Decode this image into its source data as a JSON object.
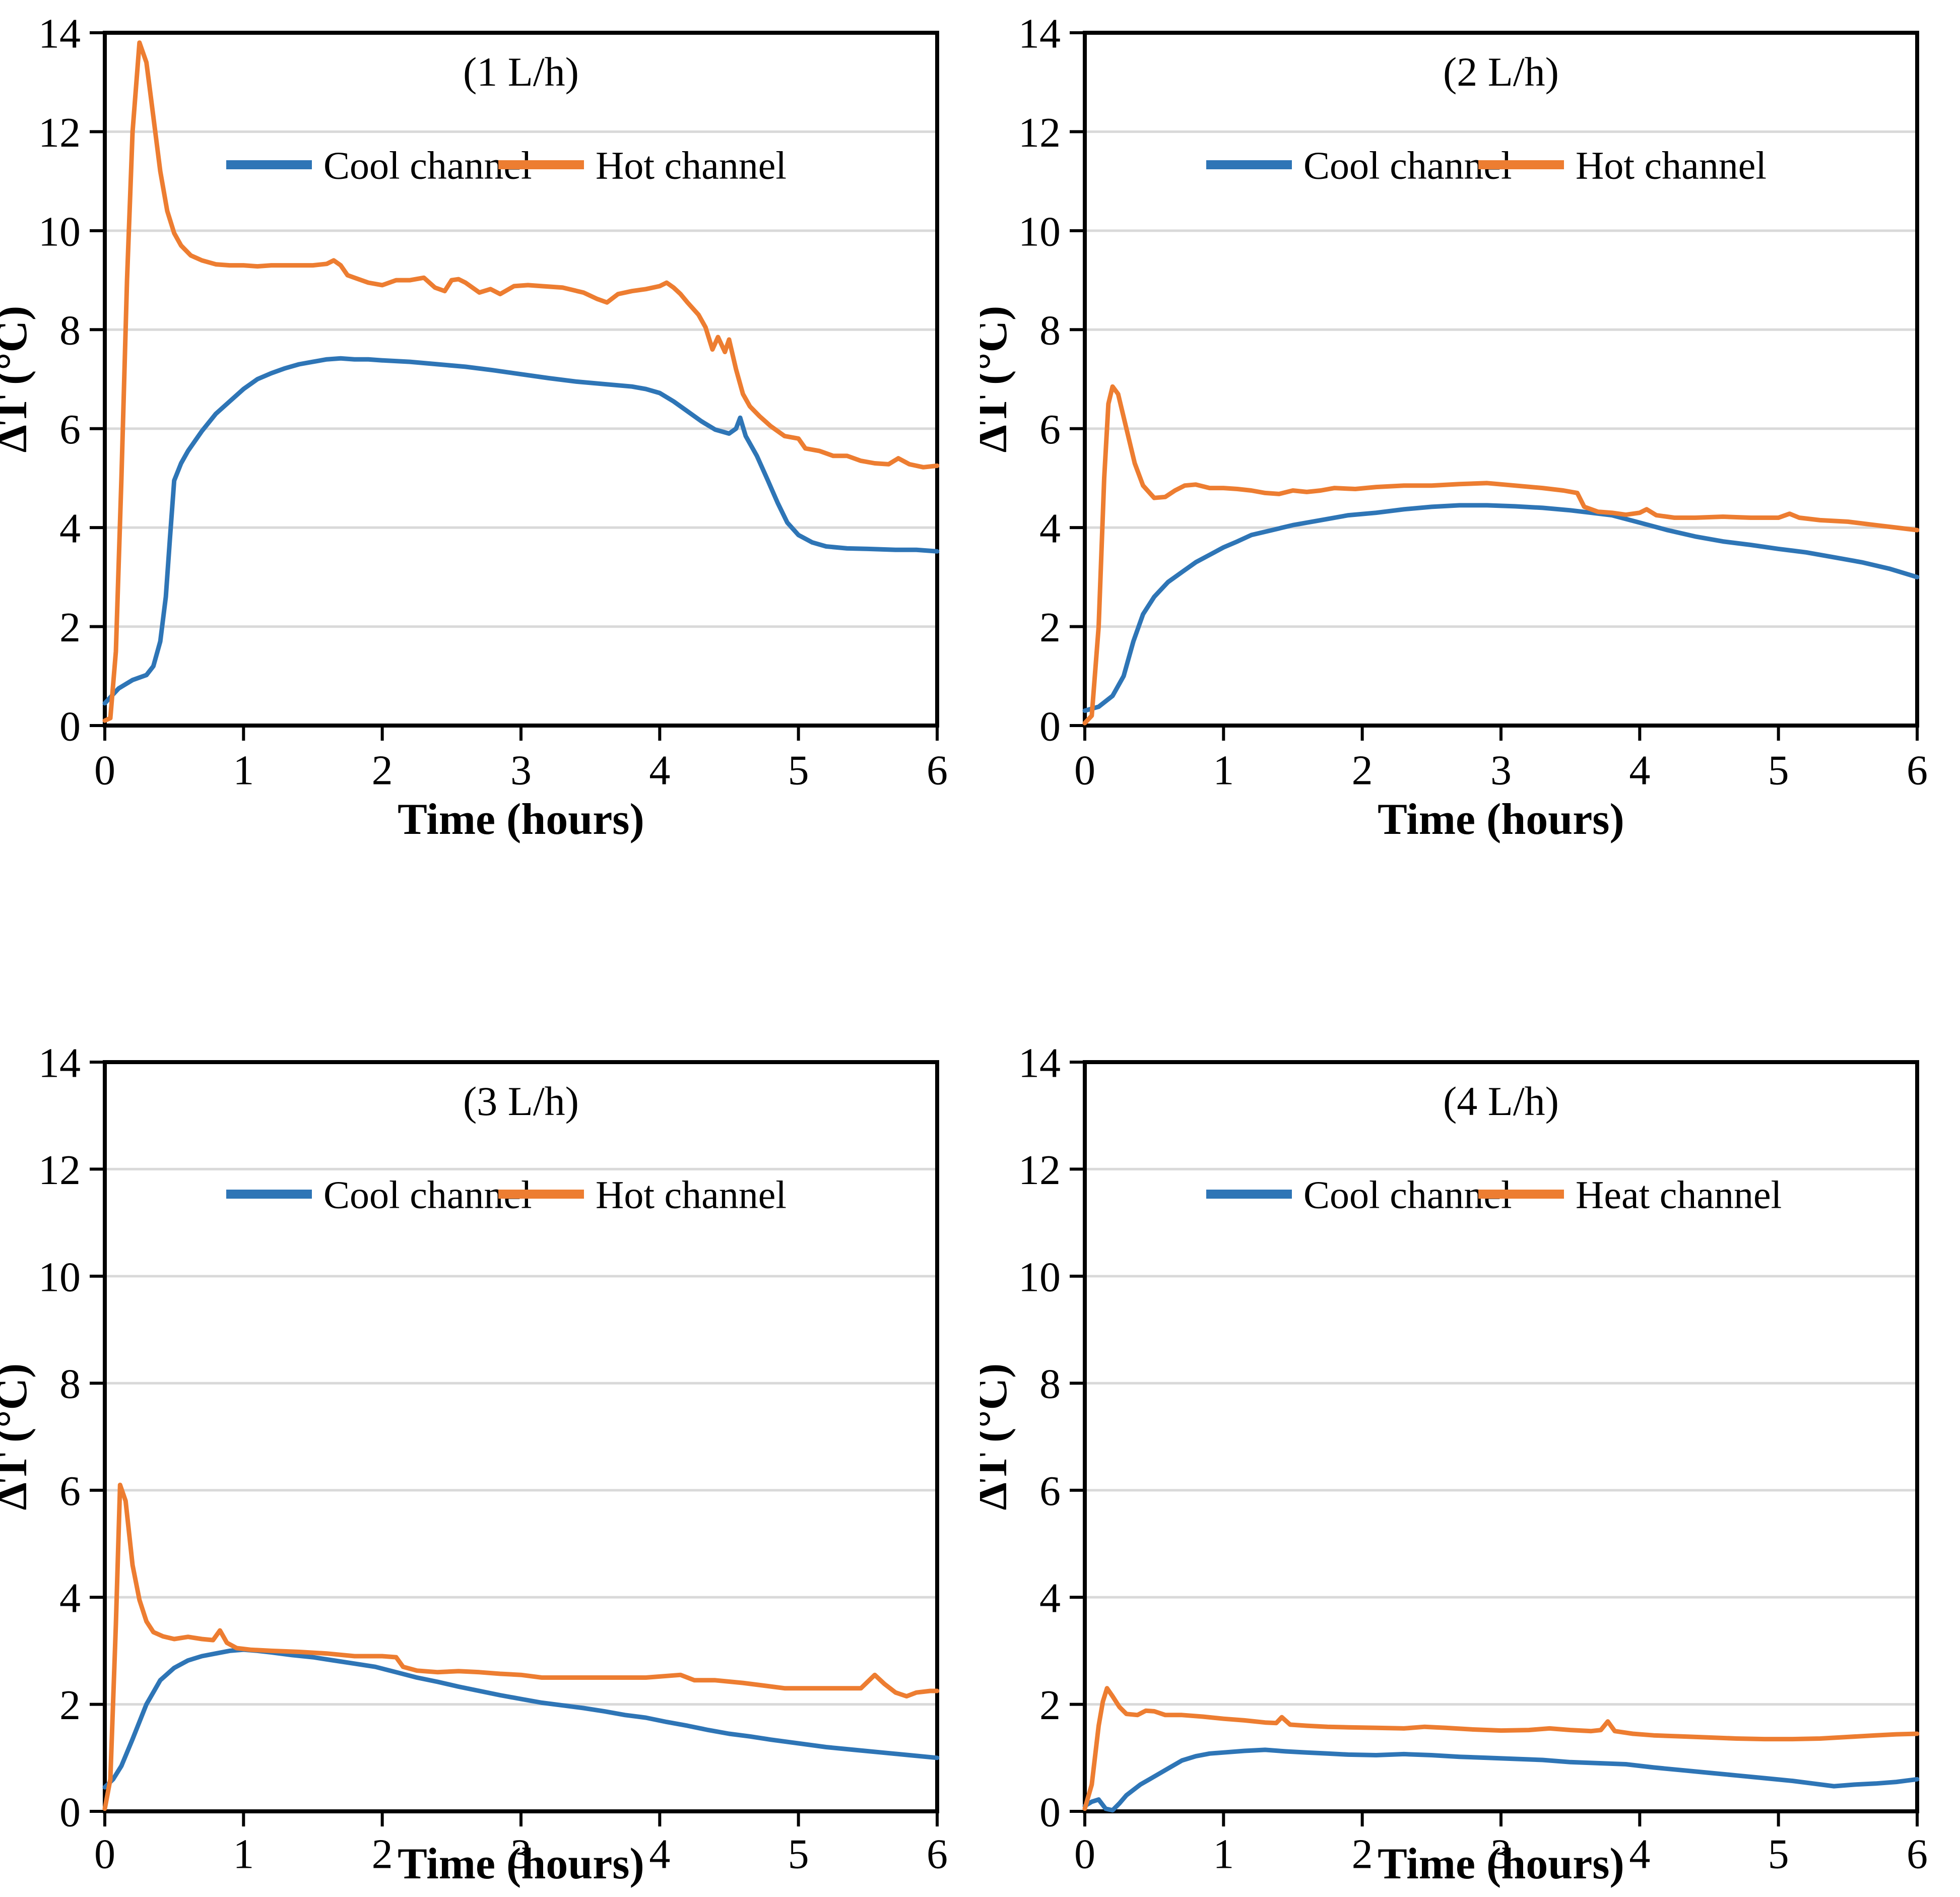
{
  "page": {
    "background": "#FFFFFF"
  },
  "colors": {
    "cool": "#2E75B6",
    "hot": "#ED7D31",
    "gridline": "#D9D9D9",
    "axis": "#000000"
  },
  "chart_data": [
    {
      "type": "line",
      "title": "(1 L/h)",
      "xlabel": "Time (hours)",
      "ylabel": "ΔT (°C)",
      "xlim": [
        0,
        6
      ],
      "ylim": [
        0,
        14
      ],
      "xticks": [
        0,
        1,
        2,
        3,
        4,
        5,
        6
      ],
      "yticks": [
        0,
        2,
        4,
        6,
        8,
        10,
        12,
        14
      ],
      "grid": "horizontal",
      "legend_position": "top-inside",
      "series": [
        {
          "name": "Cool channel",
          "key": "cool",
          "x": [
            0,
            0.1,
            0.2,
            0.3,
            0.35,
            0.4,
            0.44,
            0.47,
            0.5,
            0.55,
            0.6,
            0.7,
            0.8,
            0.9,
            1.0,
            1.1,
            1.2,
            1.3,
            1.4,
            1.5,
            1.6,
            1.7,
            1.8,
            1.9,
            2.0,
            2.2,
            2.4,
            2.6,
            2.8,
            3.0,
            3.2,
            3.4,
            3.6,
            3.8,
            3.9,
            4.0,
            4.1,
            4.2,
            4.3,
            4.4,
            4.5,
            4.55,
            4.58,
            4.62,
            4.7,
            4.78,
            4.85,
            4.92,
            5.0,
            5.1,
            5.2,
            5.35,
            5.5,
            5.7,
            5.85,
            6.0
          ],
          "y": [
            0.45,
            0.75,
            0.92,
            1.02,
            1.2,
            1.7,
            2.6,
            3.8,
            4.95,
            5.3,
            5.55,
            5.95,
            6.3,
            6.55,
            6.8,
            7.0,
            7.12,
            7.22,
            7.3,
            7.35,
            7.4,
            7.42,
            7.4,
            7.4,
            7.38,
            7.35,
            7.3,
            7.25,
            7.18,
            7.1,
            7.02,
            6.95,
            6.9,
            6.85,
            6.8,
            6.72,
            6.55,
            6.35,
            6.15,
            5.98,
            5.9,
            6.0,
            6.22,
            5.85,
            5.45,
            4.95,
            4.5,
            4.1,
            3.85,
            3.7,
            3.62,
            3.58,
            3.57,
            3.55,
            3.55,
            3.52
          ]
        },
        {
          "name": "Hot channel",
          "key": "hot",
          "x": [
            0,
            0.04,
            0.08,
            0.12,
            0.16,
            0.2,
            0.25,
            0.3,
            0.35,
            0.4,
            0.45,
            0.5,
            0.55,
            0.62,
            0.7,
            0.8,
            0.9,
            1.0,
            1.1,
            1.2,
            1.3,
            1.4,
            1.5,
            1.6,
            1.65,
            1.7,
            1.75,
            1.8,
            1.9,
            2.0,
            2.1,
            2.2,
            2.3,
            2.38,
            2.45,
            2.5,
            2.55,
            2.6,
            2.7,
            2.78,
            2.85,
            2.95,
            3.05,
            3.15,
            3.3,
            3.45,
            3.55,
            3.62,
            3.7,
            3.8,
            3.9,
            4.0,
            4.05,
            4.1,
            4.15,
            4.2,
            4.28,
            4.33,
            4.38,
            4.42,
            4.47,
            4.5,
            4.55,
            4.6,
            4.65,
            4.72,
            4.8,
            4.9,
            5.0,
            5.05,
            5.15,
            5.25,
            5.35,
            5.45,
            5.55,
            5.65,
            5.72,
            5.8,
            5.9,
            6.0
          ],
          "y": [
            0.1,
            0.15,
            1.5,
            5.0,
            9.0,
            12.0,
            13.8,
            13.4,
            12.3,
            11.2,
            10.4,
            9.95,
            9.7,
            9.5,
            9.4,
            9.32,
            9.3,
            9.3,
            9.28,
            9.3,
            9.3,
            9.3,
            9.3,
            9.33,
            9.4,
            9.3,
            9.1,
            9.05,
            8.95,
            8.9,
            9.0,
            9.0,
            9.05,
            8.85,
            8.78,
            9.0,
            9.02,
            8.95,
            8.75,
            8.82,
            8.72,
            8.88,
            8.9,
            8.88,
            8.85,
            8.75,
            8.62,
            8.55,
            8.72,
            8.78,
            8.82,
            8.88,
            8.95,
            8.85,
            8.72,
            8.55,
            8.3,
            8.05,
            7.6,
            7.85,
            7.55,
            7.8,
            7.2,
            6.7,
            6.45,
            6.25,
            6.05,
            5.85,
            5.8,
            5.6,
            5.55,
            5.45,
            5.45,
            5.35,
            5.3,
            5.28,
            5.4,
            5.28,
            5.22,
            5.25
          ]
        }
      ]
    },
    {
      "type": "line",
      "title": "(2 L/h)",
      "xlabel": "Time (hours)",
      "ylabel": "ΔT (°C)",
      "xlim": [
        0,
        6
      ],
      "ylim": [
        0,
        14
      ],
      "xticks": [
        0,
        1,
        2,
        3,
        4,
        5,
        6
      ],
      "yticks": [
        0,
        2,
        4,
        6,
        8,
        10,
        12,
        14
      ],
      "grid": "horizontal",
      "legend_position": "top-inside",
      "series": [
        {
          "name": "Cool channel",
          "key": "cool",
          "x": [
            0,
            0.1,
            0.2,
            0.28,
            0.35,
            0.42,
            0.5,
            0.6,
            0.7,
            0.8,
            0.9,
            1.0,
            1.1,
            1.2,
            1.35,
            1.5,
            1.7,
            1.9,
            2.1,
            2.3,
            2.5,
            2.7,
            2.9,
            3.1,
            3.3,
            3.5,
            3.65,
            3.8,
            4.0,
            4.2,
            4.4,
            4.6,
            4.8,
            5.0,
            5.2,
            5.4,
            5.6,
            5.8,
            6.0
          ],
          "y": [
            0.3,
            0.38,
            0.6,
            1.0,
            1.7,
            2.25,
            2.6,
            2.9,
            3.1,
            3.3,
            3.45,
            3.6,
            3.72,
            3.85,
            3.95,
            4.05,
            4.15,
            4.25,
            4.3,
            4.37,
            4.42,
            4.45,
            4.45,
            4.43,
            4.4,
            4.35,
            4.3,
            4.25,
            4.1,
            3.95,
            3.82,
            3.72,
            3.65,
            3.57,
            3.5,
            3.4,
            3.3,
            3.17,
            3.0
          ]
        },
        {
          "name": "Hot channel",
          "key": "hot",
          "x": [
            0,
            0.05,
            0.1,
            0.14,
            0.17,
            0.2,
            0.24,
            0.3,
            0.36,
            0.42,
            0.5,
            0.58,
            0.65,
            0.72,
            0.8,
            0.9,
            1.0,
            1.1,
            1.2,
            1.3,
            1.4,
            1.5,
            1.6,
            1.7,
            1.8,
            1.95,
            2.1,
            2.3,
            2.5,
            2.7,
            2.9,
            3.1,
            3.3,
            3.45,
            3.55,
            3.6,
            3.7,
            3.8,
            3.9,
            4.0,
            4.05,
            4.12,
            4.25,
            4.4,
            4.6,
            4.8,
            5.0,
            5.08,
            5.15,
            5.3,
            5.5,
            5.7,
            5.85,
            6.0
          ],
          "y": [
            0.05,
            0.2,
            2.0,
            5.0,
            6.5,
            6.85,
            6.7,
            6.0,
            5.3,
            4.85,
            4.6,
            4.62,
            4.75,
            4.85,
            4.87,
            4.8,
            4.8,
            4.78,
            4.75,
            4.7,
            4.68,
            4.75,
            4.72,
            4.75,
            4.8,
            4.78,
            4.82,
            4.85,
            4.85,
            4.88,
            4.9,
            4.85,
            4.8,
            4.75,
            4.7,
            4.42,
            4.32,
            4.3,
            4.26,
            4.3,
            4.37,
            4.25,
            4.2,
            4.2,
            4.22,
            4.2,
            4.2,
            4.28,
            4.2,
            4.15,
            4.12,
            4.05,
            4.0,
            3.95
          ]
        }
      ]
    },
    {
      "type": "line",
      "title": "(3 L/h)",
      "xlabel": "Time (hours)",
      "ylabel": "ΔT (°C)",
      "xlim": [
        0,
        6
      ],
      "ylim": [
        0,
        14
      ],
      "xticks": [
        0,
        1,
        2,
        3,
        4,
        5,
        6
      ],
      "yticks": [
        0,
        2,
        4,
        6,
        8,
        10,
        12,
        14
      ],
      "grid": "horizontal",
      "legend_position": "top-inside",
      "series": [
        {
          "name": "Cool channel",
          "key": "cool",
          "x": [
            0,
            0.06,
            0.12,
            0.2,
            0.3,
            0.4,
            0.5,
            0.6,
            0.7,
            0.8,
            0.9,
            1.0,
            1.1,
            1.2,
            1.35,
            1.5,
            1.65,
            1.8,
            1.95,
            2.1,
            2.25,
            2.4,
            2.55,
            2.7,
            2.85,
            3.0,
            3.15,
            3.3,
            3.45,
            3.6,
            3.75,
            3.9,
            4.05,
            4.2,
            4.35,
            4.5,
            4.65,
            4.8,
            5.0,
            5.2,
            5.4,
            5.6,
            5.8,
            6.0
          ],
          "y": [
            0.45,
            0.6,
            0.85,
            1.35,
            2.0,
            2.45,
            2.68,
            2.82,
            2.9,
            2.95,
            3.0,
            3.02,
            3.0,
            2.97,
            2.92,
            2.88,
            2.82,
            2.76,
            2.7,
            2.6,
            2.5,
            2.42,
            2.33,
            2.25,
            2.17,
            2.1,
            2.03,
            1.98,
            1.93,
            1.87,
            1.8,
            1.75,
            1.67,
            1.6,
            1.52,
            1.45,
            1.4,
            1.34,
            1.27,
            1.2,
            1.15,
            1.1,
            1.05,
            1.0
          ]
        },
        {
          "name": "Hot channel",
          "key": "hot",
          "x": [
            0,
            0.04,
            0.08,
            0.11,
            0.15,
            0.2,
            0.25,
            0.3,
            0.35,
            0.42,
            0.5,
            0.6,
            0.7,
            0.78,
            0.83,
            0.88,
            0.95,
            1.05,
            1.2,
            1.4,
            1.6,
            1.8,
            2.0,
            2.1,
            2.15,
            2.25,
            2.4,
            2.55,
            2.7,
            2.85,
            3.0,
            3.15,
            3.3,
            3.5,
            3.7,
            3.9,
            4.05,
            4.15,
            4.25,
            4.4,
            4.6,
            4.75,
            4.9,
            5.1,
            5.3,
            5.45,
            5.55,
            5.62,
            5.7,
            5.78,
            5.85,
            5.95,
            6.0
          ],
          "y": [
            0.05,
            0.6,
            3.5,
            6.1,
            5.8,
            4.6,
            3.95,
            3.55,
            3.35,
            3.27,
            3.22,
            3.26,
            3.22,
            3.2,
            3.38,
            3.15,
            3.05,
            3.02,
            3.0,
            2.98,
            2.95,
            2.9,
            2.9,
            2.88,
            2.7,
            2.63,
            2.6,
            2.62,
            2.6,
            2.57,
            2.55,
            2.5,
            2.5,
            2.5,
            2.5,
            2.5,
            2.53,
            2.55,
            2.45,
            2.45,
            2.4,
            2.35,
            2.3,
            2.3,
            2.3,
            2.3,
            2.55,
            2.38,
            2.22,
            2.15,
            2.22,
            2.25,
            2.25
          ]
        }
      ]
    },
    {
      "type": "line",
      "title": "(4 L/h)",
      "xlabel": "Time (hours)",
      "ylabel": "ΔT (°C)",
      "xlim": [
        0,
        6
      ],
      "ylim": [
        0,
        14
      ],
      "xticks": [
        0,
        1,
        2,
        3,
        4,
        5,
        6
      ],
      "yticks": [
        0,
        2,
        4,
        6,
        8,
        10,
        12,
        14
      ],
      "grid": "horizontal",
      "legend_position": "top-inside",
      "series": [
        {
          "name": "Cool channel",
          "key": "cool",
          "x": [
            0,
            0.05,
            0.1,
            0.15,
            0.2,
            0.25,
            0.3,
            0.4,
            0.5,
            0.6,
            0.7,
            0.8,
            0.9,
            1.0,
            1.15,
            1.3,
            1.45,
            1.6,
            1.75,
            1.9,
            2.1,
            2.3,
            2.5,
            2.7,
            2.9,
            3.1,
            3.3,
            3.5,
            3.7,
            3.9,
            4.1,
            4.3,
            4.5,
            4.7,
            4.9,
            5.1,
            5.25,
            5.4,
            5.55,
            5.7,
            5.85,
            6.0
          ],
          "y": [
            0.1,
            0.18,
            0.22,
            0.05,
            0.02,
            0.15,
            0.3,
            0.5,
            0.65,
            0.8,
            0.95,
            1.03,
            1.08,
            1.1,
            1.13,
            1.15,
            1.12,
            1.1,
            1.08,
            1.06,
            1.05,
            1.07,
            1.05,
            1.02,
            1.0,
            0.98,
            0.96,
            0.92,
            0.9,
            0.88,
            0.82,
            0.77,
            0.72,
            0.67,
            0.62,
            0.57,
            0.52,
            0.47,
            0.5,
            0.52,
            0.55,
            0.6
          ]
        },
        {
          "name": "Heat channel",
          "key": "hot",
          "x": [
            0,
            0.05,
            0.1,
            0.13,
            0.16,
            0.2,
            0.25,
            0.3,
            0.38,
            0.44,
            0.5,
            0.58,
            0.7,
            0.85,
            1.0,
            1.15,
            1.3,
            1.38,
            1.42,
            1.48,
            1.6,
            1.75,
            1.9,
            2.1,
            2.3,
            2.45,
            2.6,
            2.8,
            3.0,
            3.2,
            3.35,
            3.5,
            3.65,
            3.72,
            3.77,
            3.82,
            3.95,
            4.1,
            4.3,
            4.5,
            4.7,
            4.9,
            5.1,
            5.3,
            5.5,
            5.7,
            5.85,
            6.0
          ],
          "y": [
            0.05,
            0.5,
            1.6,
            2.05,
            2.3,
            2.15,
            1.95,
            1.82,
            1.8,
            1.88,
            1.87,
            1.8,
            1.8,
            1.77,
            1.73,
            1.7,
            1.66,
            1.65,
            1.76,
            1.62,
            1.6,
            1.58,
            1.57,
            1.56,
            1.55,
            1.58,
            1.56,
            1.53,
            1.51,
            1.52,
            1.55,
            1.52,
            1.5,
            1.52,
            1.68,
            1.5,
            1.45,
            1.42,
            1.4,
            1.38,
            1.36,
            1.35,
            1.35,
            1.36,
            1.39,
            1.42,
            1.44,
            1.45
          ]
        }
      ]
    }
  ]
}
